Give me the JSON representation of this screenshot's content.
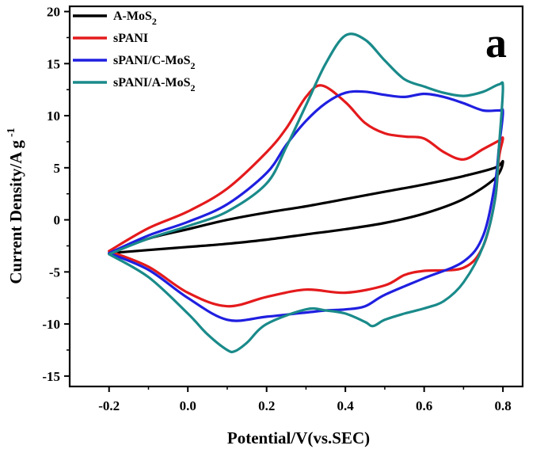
{
  "chart_data": {
    "type": "line",
    "xlabel": "Potential/V(vs.SEC)",
    "ylabel": "Current Density/A g",
    "ylabel_sup": "-1",
    "panel_label": "a",
    "xlim": [
      -0.3,
      0.85
    ],
    "ylim": [
      -16,
      20.5
    ],
    "x_ticks": [
      -0.2,
      0.0,
      0.2,
      0.4,
      0.6,
      0.8
    ],
    "x_tick_labels": [
      "-0.2",
      "0.0",
      "0.2",
      "0.4",
      "0.6",
      "0.8"
    ],
    "y_ticks": [
      -15,
      -10,
      -5,
      0,
      5,
      10,
      15,
      20
    ],
    "y_tick_labels": [
      "-15",
      "-10",
      "-5",
      "0",
      "5",
      "10",
      "15",
      "20"
    ],
    "grid": false,
    "legend_position": "top-left",
    "series": [
      {
        "name": "A-MoS2",
        "legend_main": "A-MoS",
        "legend_sub": "2",
        "color": "#000000",
        "x": [
          -0.2,
          -0.1,
          0.0,
          0.1,
          0.2,
          0.3,
          0.4,
          0.5,
          0.6,
          0.7,
          0.78,
          0.8,
          0.78,
          0.7,
          0.6,
          0.5,
          0.4,
          0.3,
          0.2,
          0.1,
          0.0,
          -0.1,
          -0.2
        ],
        "y": [
          -3.2,
          -1.8,
          -0.9,
          0.0,
          0.7,
          1.3,
          2.0,
          2.7,
          3.4,
          4.2,
          5.0,
          5.6,
          4.0,
          2.0,
          0.6,
          -0.3,
          -0.9,
          -1.4,
          -1.9,
          -2.3,
          -2.6,
          -2.9,
          -3.2
        ]
      },
      {
        "name": "sPANI",
        "legend_main": "sPANI",
        "legend_sub": "",
        "color": "#e41a1c",
        "x": [
          -0.2,
          -0.1,
          0.0,
          0.1,
          0.2,
          0.25,
          0.3,
          0.34,
          0.4,
          0.45,
          0.5,
          0.55,
          0.6,
          0.65,
          0.7,
          0.75,
          0.79,
          0.8,
          0.79,
          0.78,
          0.75,
          0.7,
          0.6,
          0.55,
          0.5,
          0.4,
          0.3,
          0.2,
          0.1,
          0.0,
          -0.1,
          -0.2
        ],
        "y": [
          -3.0,
          -0.8,
          0.8,
          3.0,
          6.5,
          8.8,
          11.8,
          12.9,
          11.3,
          9.3,
          8.3,
          8.0,
          7.8,
          6.5,
          5.8,
          6.8,
          7.6,
          7.8,
          6.0,
          2.0,
          -2.5,
          -4.6,
          -4.9,
          -5.3,
          -6.3,
          -7.0,
          -6.7,
          -7.4,
          -8.3,
          -7.0,
          -4.5,
          -3.0
        ]
      },
      {
        "name": "sPANI/C-MoS2",
        "legend_main": "sPANI/C-MoS",
        "legend_sub": "2",
        "color": "#1f1fe0",
        "x": [
          -0.2,
          -0.1,
          0.0,
          0.1,
          0.2,
          0.25,
          0.3,
          0.35,
          0.4,
          0.45,
          0.5,
          0.55,
          0.6,
          0.65,
          0.7,
          0.75,
          0.79,
          0.8,
          0.79,
          0.78,
          0.75,
          0.7,
          0.6,
          0.5,
          0.45,
          0.4,
          0.35,
          0.3,
          0.2,
          0.1,
          0.0,
          -0.1,
          -0.2
        ],
        "y": [
          -3.2,
          -1.5,
          -0.2,
          1.5,
          4.5,
          7.2,
          9.5,
          11.2,
          12.2,
          12.3,
          12.0,
          11.8,
          12.1,
          11.8,
          11.2,
          10.5,
          10.5,
          10.3,
          7.0,
          3.5,
          -1.5,
          -4.0,
          -5.6,
          -7.2,
          -8.3,
          -8.6,
          -8.7,
          -8.9,
          -9.3,
          -9.6,
          -7.5,
          -4.8,
          -3.2
        ]
      },
      {
        "name": "sPANI/A-MoS2",
        "legend_main": "sPANI/A-MoS",
        "legend_sub": "2",
        "color": "#1a8a8a",
        "x": [
          -0.2,
          -0.1,
          0.0,
          0.1,
          0.2,
          0.25,
          0.3,
          0.35,
          0.4,
          0.45,
          0.5,
          0.55,
          0.6,
          0.65,
          0.7,
          0.75,
          0.79,
          0.8,
          0.79,
          0.78,
          0.75,
          0.7,
          0.65,
          0.6,
          0.55,
          0.5,
          0.47,
          0.45,
          0.4,
          0.35,
          0.3,
          0.2,
          0.15,
          0.12,
          0.1,
          0.05,
          0.0,
          -0.1,
          -0.2
        ],
        "y": [
          -3.3,
          -1.8,
          -0.6,
          0.8,
          3.5,
          7.0,
          11.0,
          15.0,
          17.7,
          17.3,
          15.3,
          13.5,
          12.8,
          12.2,
          11.9,
          12.3,
          13.0,
          12.6,
          7.0,
          2.0,
          -2.5,
          -6.0,
          -7.8,
          -8.5,
          -9.0,
          -9.6,
          -10.2,
          -9.8,
          -9.0,
          -8.7,
          -8.6,
          -10.0,
          -11.8,
          -12.6,
          -12.5,
          -11.0,
          -9.0,
          -5.5,
          -3.3
        ]
      }
    ]
  }
}
